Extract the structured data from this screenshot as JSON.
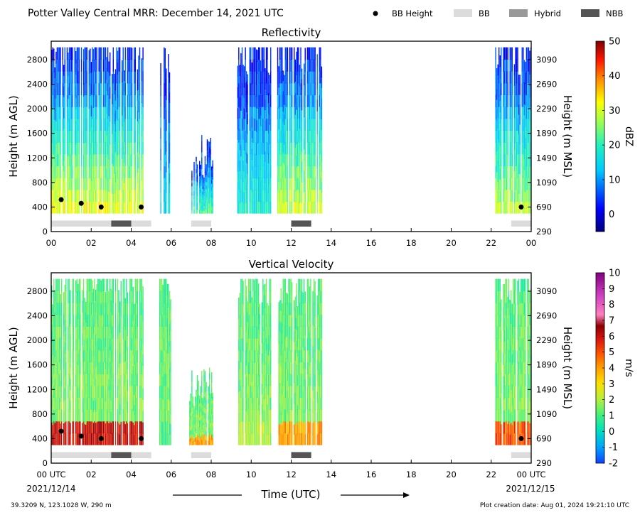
{
  "header": {
    "title": "Potter Valley Central MRR:  December 14, 2021 UTC",
    "legend": [
      {
        "label": "BB Height",
        "kind": "dot",
        "color": "#000000"
      },
      {
        "label": "BB",
        "kind": "swatch",
        "color": "#dcdcdc"
      },
      {
        "label": "Hybrid",
        "kind": "swatch",
        "color": "#999999"
      },
      {
        "label": "NBB",
        "kind": "swatch",
        "color": "#555555"
      }
    ]
  },
  "footer": {
    "location": "39.3209 N, 123.1028 W, 290 m",
    "creation": "Plot creation date: Aug 01, 2024 19:21:10 UTC",
    "xlabel": "Time (UTC)",
    "start_date": "2021/12/14",
    "end_date": "2021/12/15"
  },
  "chart_data": [
    {
      "type": "heatmap",
      "title": "Reflectivity",
      "ylabel": "Height (m AGL)",
      "ylabel_right": "Height (m MSL)",
      "colorbar_label": "dBZ",
      "x_ticks": [
        "00",
        "02",
        "04",
        "06",
        "08",
        "10",
        "12",
        "14",
        "16",
        "18",
        "20",
        "22",
        "00"
      ],
      "xlim": [
        0,
        24
      ],
      "ylim": [
        0,
        3100
      ],
      "y_ticks": [
        0,
        400,
        800,
        1200,
        1600,
        2000,
        2400,
        2800
      ],
      "y_ticks_right": [
        "290",
        "690",
        "1090",
        "1490",
        "1890",
        "2290",
        "2690",
        "3090"
      ],
      "colorbar_ticks": [
        "0",
        "10",
        "20",
        "30",
        "40",
        "50"
      ],
      "colorbar_range": [
        -5,
        50
      ],
      "palette": "jet",
      "echo_periods": [
        {
          "start": 0.0,
          "end": 4.6,
          "top": 3000,
          "base_peak": 28
        },
        {
          "start": 5.4,
          "end": 6.0,
          "top": 3000,
          "base_peak": 10
        },
        {
          "start": 6.9,
          "end": 8.1,
          "top": 1600,
          "base_peak": 18
        },
        {
          "start": 9.3,
          "end": 11.0,
          "top": 3000,
          "base_peak": 14
        },
        {
          "start": 11.3,
          "end": 13.5,
          "top": 3000,
          "base_peak": 26
        },
        {
          "start": 22.2,
          "end": 24.0,
          "top": 3000,
          "base_peak": 24
        }
      ],
      "bb_height": [
        {
          "x": 0.5,
          "y": 520
        },
        {
          "x": 1.5,
          "y": 460
        },
        {
          "x": 2.5,
          "y": 400
        },
        {
          "x": 4.5,
          "y": 400
        },
        {
          "x": 23.5,
          "y": 400
        }
      ],
      "bb_bars": [
        {
          "start": 0.0,
          "end": 3.0,
          "type": "BB"
        },
        {
          "start": 3.0,
          "end": 4.0,
          "type": "NBB"
        },
        {
          "start": 4.0,
          "end": 5.0,
          "type": "BB"
        },
        {
          "start": 7.0,
          "end": 8.0,
          "type": "BB"
        },
        {
          "start": 12.0,
          "end": 13.0,
          "type": "NBB"
        },
        {
          "start": 23.0,
          "end": 24.0,
          "type": "BB"
        }
      ]
    },
    {
      "type": "heatmap",
      "title": "Vertical Velocity",
      "ylabel": "Height (m AGL)",
      "ylabel_right": "Height (m MSL)",
      "colorbar_label": "m/s",
      "x_ticks": [
        "00 UTC",
        "02",
        "04",
        "06",
        "08",
        "10",
        "12",
        "14",
        "16",
        "18",
        "20",
        "22",
        "00 UTC"
      ],
      "xlim": [
        0,
        24
      ],
      "ylim": [
        0,
        3100
      ],
      "y_ticks": [
        0,
        400,
        800,
        1200,
        1600,
        2000,
        2400,
        2800
      ],
      "y_ticks_right": [
        "290",
        "690",
        "1090",
        "1490",
        "1890",
        "2290",
        "2690",
        "3090"
      ],
      "colorbar_ticks": [
        "-2",
        "-1",
        "0",
        "1",
        "2",
        "3",
        "4",
        "5",
        "6",
        "7",
        "8",
        "9",
        "10"
      ],
      "colorbar_range": [
        -2,
        10
      ],
      "palette": "velocity",
      "echo_periods": [
        {
          "start": 0.0,
          "end": 4.6,
          "top": 3000,
          "base_peak": 6
        },
        {
          "start": 5.4,
          "end": 6.0,
          "top": 3000,
          "base_peak": 1
        },
        {
          "start": 6.9,
          "end": 8.1,
          "top": 1600,
          "base_peak": 4
        },
        {
          "start": 9.3,
          "end": 11.0,
          "top": 3000,
          "base_peak": 2
        },
        {
          "start": 11.3,
          "end": 13.5,
          "top": 3000,
          "base_peak": 4
        },
        {
          "start": 22.2,
          "end": 24.0,
          "top": 3000,
          "base_peak": 5
        }
      ],
      "bb_height": [
        {
          "x": 0.5,
          "y": 520
        },
        {
          "x": 1.5,
          "y": 440
        },
        {
          "x": 2.5,
          "y": 400
        },
        {
          "x": 4.5,
          "y": 400
        },
        {
          "x": 23.5,
          "y": 400
        }
      ],
      "bb_bars": [
        {
          "start": 0.0,
          "end": 3.0,
          "type": "BB"
        },
        {
          "start": 3.0,
          "end": 4.0,
          "type": "NBB"
        },
        {
          "start": 4.0,
          "end": 5.0,
          "type": "BB"
        },
        {
          "start": 7.0,
          "end": 8.0,
          "type": "BB"
        },
        {
          "start": 12.0,
          "end": 13.0,
          "type": "NBB"
        },
        {
          "start": 23.0,
          "end": 24.0,
          "type": "BB"
        }
      ]
    }
  ]
}
